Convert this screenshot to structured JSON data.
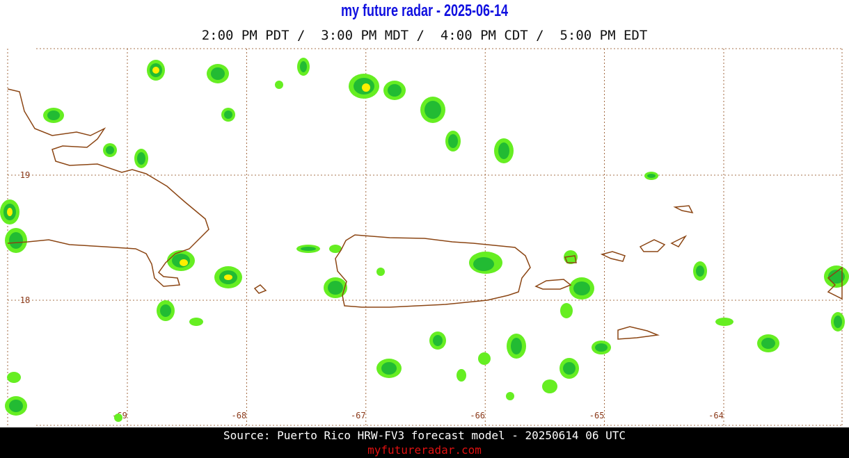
{
  "title": "my future radar - 2025-06-14",
  "times": "2:00 PM PDT /  3:00 PM MDT /  4:00 PM CDT /  5:00 PM EDT",
  "lat_labels": [
    19,
    18
  ],
  "lon_labels": [
    -69,
    -68,
    -67,
    -66,
    -65,
    -64
  ],
  "source": "Source: Puerto Rico HRW-FV3 forecast model - 20250614 06 UTC",
  "website": "myfutureradar.com"
}
